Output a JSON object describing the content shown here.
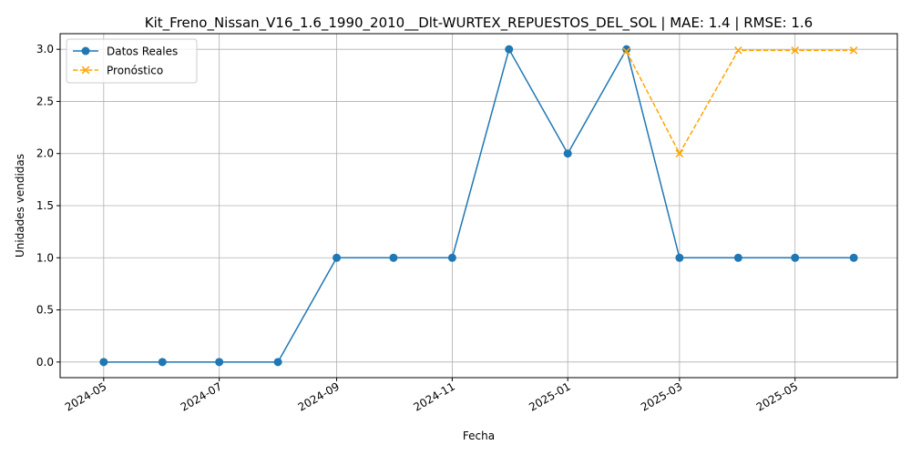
{
  "chart_data": {
    "type": "line",
    "title": "Kit_Freno_Nissan_V16_1.6_1990_2010__Dlt-WURTEX_REPUESTOS_DEL_SOL | MAE: 1.4 | RMSE: 1.6",
    "xlabel": "Fecha",
    "ylabel": "Unidades vendidas",
    "x_axis_type": "date",
    "xlim": [
      "2024-04-08",
      "2025-06-24"
    ],
    "ylim": [
      -0.15,
      3.15
    ],
    "x_ticks": [
      "2024-05-01",
      "2024-07-01",
      "2024-09-01",
      "2024-11-01",
      "2025-01-01",
      "2025-03-01",
      "2025-05-01"
    ],
    "x_tick_labels": [
      "2024-05",
      "2024-07",
      "2024-09",
      "2024-11",
      "2025-01",
      "2025-03",
      "2025-05"
    ],
    "y_ticks": [
      0.0,
      0.5,
      1.0,
      1.5,
      2.0,
      2.5,
      3.0
    ],
    "y_tick_labels": [
      "0.0",
      "0.5",
      "1.0",
      "1.5",
      "2.0",
      "2.5",
      "3.0"
    ],
    "grid": true,
    "legend_position": "top-left",
    "series": [
      {
        "name": "Datos Reales",
        "color": "#1f77b4",
        "line_style": "solid",
        "marker": "circle",
        "x": [
          "2024-05-01",
          "2024-06-01",
          "2024-07-01",
          "2024-08-01",
          "2024-09-01",
          "2024-10-01",
          "2024-11-01",
          "2024-12-01",
          "2025-01-01",
          "2025-02-01",
          "2025-03-01",
          "2025-04-01",
          "2025-05-01",
          "2025-06-01"
        ],
        "values": [
          0,
          0,
          0,
          0,
          1,
          1,
          1,
          3,
          2,
          3,
          1,
          1,
          1,
          1
        ]
      },
      {
        "name": "Pronóstico",
        "color": "#ffa500",
        "line_style": "dashed",
        "marker": "x",
        "x": [
          "2025-02-01",
          "2025-03-01",
          "2025-04-01",
          "2025-05-01",
          "2025-06-01"
        ],
        "values": [
          2.98,
          2.0,
          2.99,
          2.99,
          2.99
        ]
      }
    ]
  }
}
